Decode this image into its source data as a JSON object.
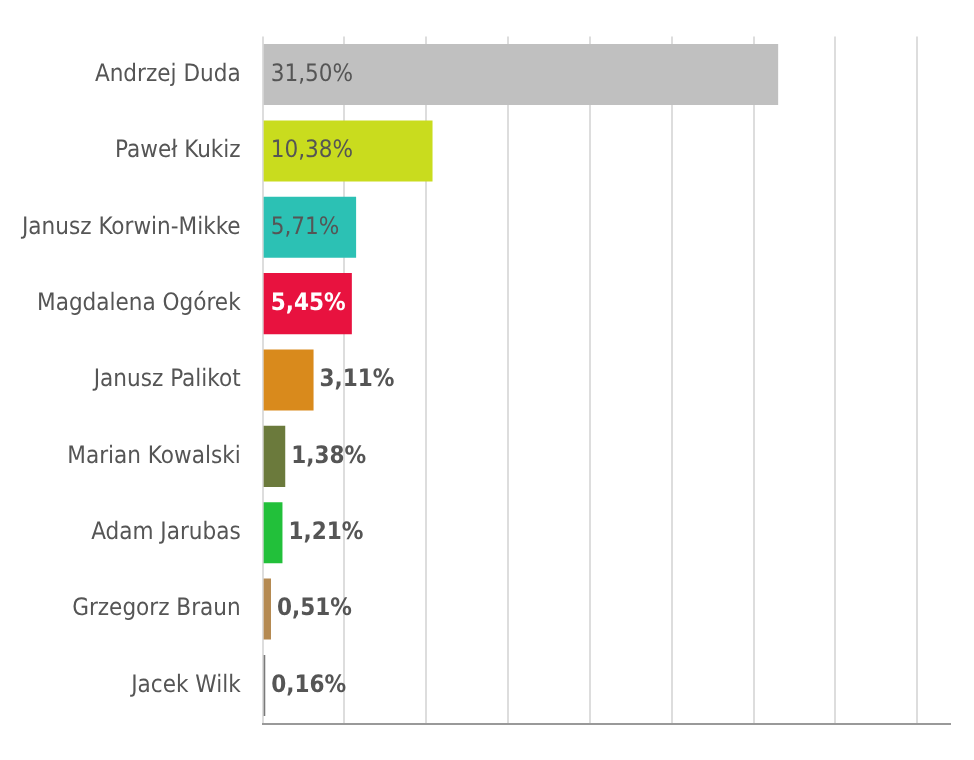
{
  "chart_data": {
    "type": "bar",
    "orientation": "horizontal",
    "categories": [
      "Andrzej Duda",
      "Paweł Kukiz",
      "Janusz Korwin-Mikke",
      "Magdalena Ogórek",
      "Janusz Palikot",
      "Marian Kowalski",
      "Adam Jarubas",
      "Grzegorz Braun",
      "Jacek Wilk"
    ],
    "values": [
      31.5,
      10.38,
      5.71,
      5.45,
      3.11,
      1.38,
      1.21,
      0.51,
      0.16
    ],
    "value_labels": [
      "31,50%",
      "10,38%",
      "5,71%",
      "5,45%",
      "3,11%",
      "1,38%",
      "1,21%",
      "0,51%",
      "0,16%"
    ],
    "colors": [
      "#c0c0c0",
      "#c9dc1e",
      "#2cc1b4",
      "#e8123f",
      "#d98a1c",
      "#6b7a3c",
      "#22c03a",
      "#b58a52",
      "#7a7a7a"
    ],
    "xlim": [
      0,
      42
    ],
    "xticks": [
      {
        "value": 0,
        "label": null
      },
      {
        "value": 5,
        "label": null
      },
      {
        "value": 10,
        "label": null
      },
      {
        "value": 15,
        "label": null
      },
      {
        "value": 20,
        "label": null
      },
      {
        "value": 25,
        "label": null
      },
      {
        "value": 30,
        "label": null
      },
      {
        "value": 35,
        "label": null
      },
      {
        "value": 40,
        "label": null
      }
    ],
    "grid": "x",
    "tick_labels": "y",
    "legend": false
  }
}
